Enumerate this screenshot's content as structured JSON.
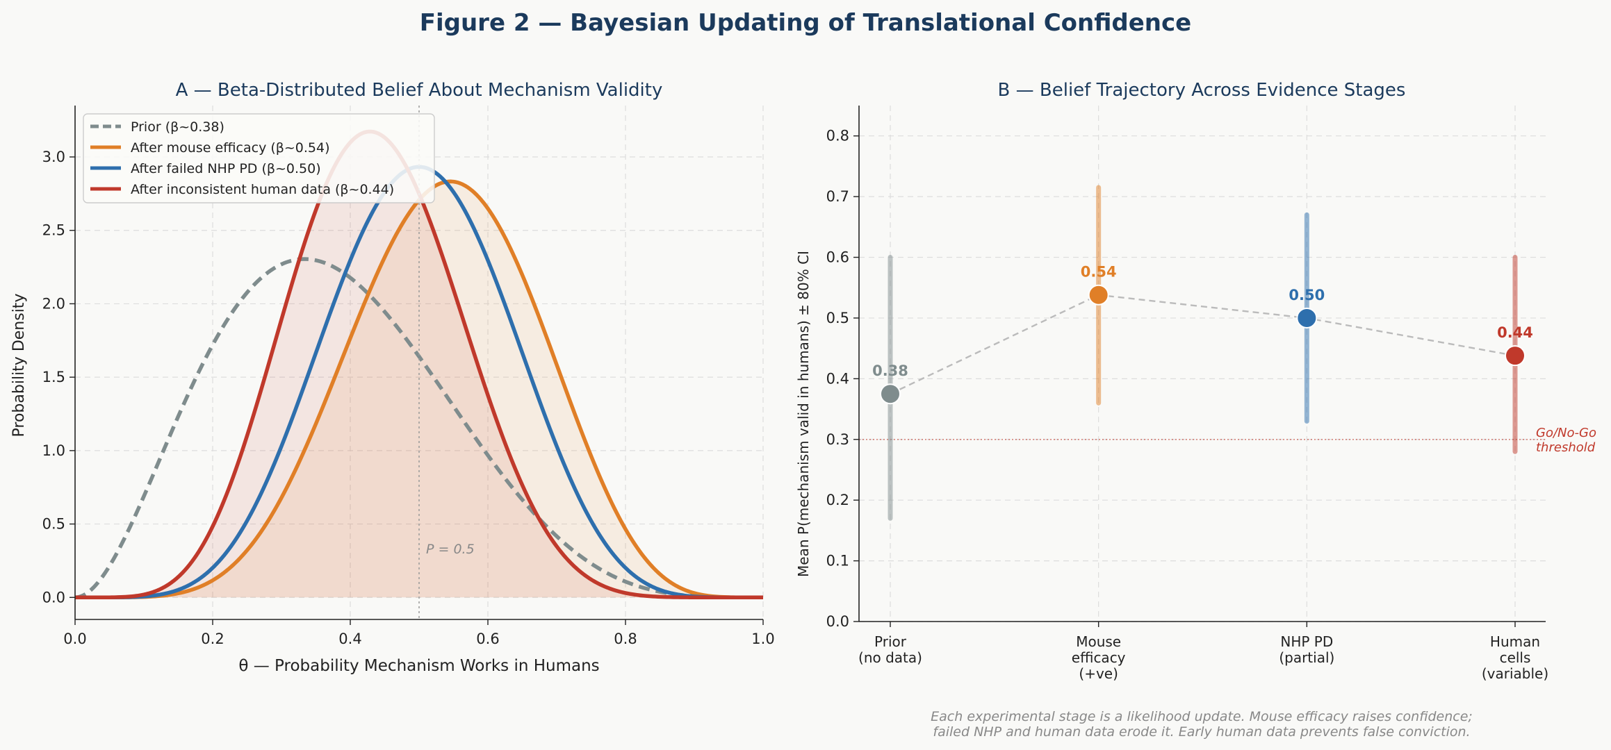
{
  "figure_title": "Figure 2 — Bayesian Updating of Translational Confidence",
  "colors": {
    "title": "#1b3a5c",
    "prior": "#7f8c8d",
    "mouse": "#e07f27",
    "nhp": "#2e6fad",
    "human": "#c0392b",
    "threshold": "#c0392b"
  },
  "chart_data": [
    {
      "type": "line",
      "panel": "A",
      "title": "A — Beta-Distributed Belief About Mechanism Validity",
      "xlabel": "θ — Probability Mechanism Works in Humans",
      "ylabel": "Probability Density",
      "xlim": [
        0.0,
        1.0
      ],
      "ylim": [
        -0.15,
        3.35
      ],
      "xticks": [
        "0.0",
        "0.2",
        "0.4",
        "0.6",
        "0.8",
        "1.0"
      ],
      "yticks": [
        "0.0",
        "0.5",
        "1.0",
        "1.5",
        "2.0",
        "2.5",
        "3.0"
      ],
      "grid": true,
      "legend_position": "top-left",
      "series": [
        {
          "name": "Prior  (β~0.38)",
          "alpha": 3,
          "beta": 5,
          "style": "dashed",
          "color_key": "prior",
          "fill": false
        },
        {
          "name": "After mouse efficacy  (β~0.54)",
          "alpha": 7,
          "beta": 6,
          "style": "solid",
          "color_key": "mouse",
          "fill": true
        },
        {
          "name": "After failed NHP PD  (β~0.50)",
          "alpha": 7,
          "beta": 7,
          "style": "solid",
          "color_key": "nhp",
          "fill": false
        },
        {
          "name": "After inconsistent human data  (β~0.44)",
          "alpha": 7,
          "beta": 9,
          "style": "solid",
          "color_key": "human",
          "fill": true
        }
      ],
      "annotations": [
        {
          "text": "P = 0.5",
          "x": 0.5,
          "y": 0.3
        }
      ]
    },
    {
      "type": "scatter",
      "panel": "B",
      "title": "B — Belief Trajectory Across Evidence Stages",
      "xlabel": "",
      "ylabel": "Mean P(mechanism valid in humans) ± 80% CI",
      "ylim": [
        0.0,
        0.85
      ],
      "yticks": [
        "0.0",
        "0.1",
        "0.2",
        "0.3",
        "0.4",
        "0.5",
        "0.6",
        "0.7",
        "0.8"
      ],
      "grid": true,
      "categories": [
        [
          "Prior",
          "(no data)"
        ],
        [
          "Mouse",
          "efficacy",
          "(+ve)"
        ],
        [
          "NHP PD",
          "(partial)"
        ],
        [
          "Human",
          "cells",
          "(variable)"
        ]
      ],
      "points": [
        {
          "value": 0.375,
          "label": "0.38",
          "ci_low": 0.17,
          "ci_high": 0.6,
          "color_key": "prior"
        },
        {
          "value": 0.538,
          "label": "0.54",
          "ci_low": 0.36,
          "ci_high": 0.715,
          "color_key": "mouse"
        },
        {
          "value": 0.5,
          "label": "0.50",
          "ci_low": 0.33,
          "ci_high": 0.67,
          "color_key": "nhp"
        },
        {
          "value": 0.438,
          "label": "0.44",
          "ci_low": 0.28,
          "ci_high": 0.6,
          "color_key": "human"
        }
      ],
      "threshold": {
        "value": 0.3,
        "label_lines": [
          "Go/No-Go",
          "threshold"
        ]
      }
    }
  ],
  "caption_lines": [
    "Each experimental stage is a likelihood update. Mouse efficacy raises confidence;",
    "failed NHP and human data erode it. Early human data prevents false conviction."
  ]
}
